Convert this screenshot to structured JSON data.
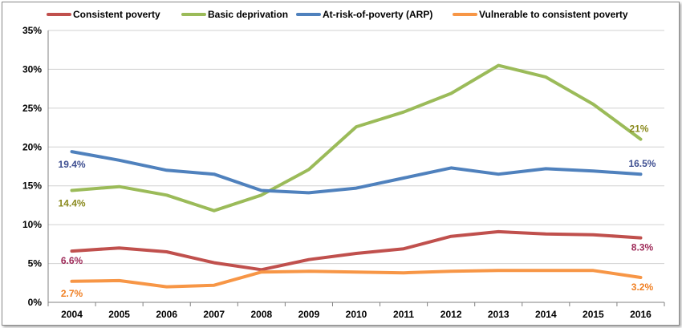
{
  "chart_data": {
    "type": "line",
    "title": "",
    "xlabel": "",
    "ylabel": "",
    "x": [
      "2004",
      "2005",
      "2006",
      "2007",
      "2008",
      "2009",
      "2010",
      "2011",
      "2012",
      "2013",
      "2014",
      "2015",
      "2016"
    ],
    "ylim": [
      0,
      35
    ],
    "yticks": [
      0,
      5,
      10,
      15,
      20,
      25,
      30,
      35
    ],
    "ytick_labels": [
      "0%",
      "5%",
      "10%",
      "15%",
      "20%",
      "25%",
      "30%",
      "35%"
    ],
    "grid": true,
    "legend_position": "top",
    "series": [
      {
        "name": "Consistent poverty",
        "color": "#c0504d",
        "values": [
          6.6,
          7.0,
          6.5,
          5.1,
          4.2,
          5.5,
          6.3,
          6.9,
          8.5,
          9.1,
          8.8,
          8.7,
          8.3
        ]
      },
      {
        "name": "Basic deprivation",
        "color": "#9bbb59",
        "values": [
          14.4,
          14.9,
          13.8,
          11.8,
          13.8,
          17.1,
          22.6,
          24.5,
          26.9,
          30.5,
          29.0,
          25.5,
          21.0
        ]
      },
      {
        "name": "At-risk-of-poverty (ARP)",
        "color": "#4f81bd",
        "values": [
          19.4,
          18.3,
          17.0,
          16.5,
          14.4,
          14.1,
          14.7,
          16.0,
          17.3,
          16.5,
          17.2,
          16.9,
          16.5
        ]
      },
      {
        "name": "Vulnerable to consistent poverty",
        "color": "#f79646",
        "values": [
          2.7,
          2.8,
          2.0,
          2.2,
          3.9,
          4.0,
          3.9,
          3.8,
          4.0,
          4.1,
          4.1,
          4.1,
          3.2
        ]
      }
    ],
    "annotations": [
      {
        "series": 1,
        "index": 0,
        "text": "14.4%",
        "color": "#8a8a1e"
      },
      {
        "series": 1,
        "index": 12,
        "text": "21%",
        "color": "#8a8a1e"
      },
      {
        "series": 2,
        "index": 0,
        "text": "19.4%",
        "color": "#3e4f91"
      },
      {
        "series": 2,
        "index": 12,
        "text": "16.5%",
        "color": "#3e4f91"
      },
      {
        "series": 0,
        "index": 0,
        "text": "6.6%",
        "color": "#9e2a58"
      },
      {
        "series": 0,
        "index": 12,
        "text": "8.3%",
        "color": "#9e2a58"
      },
      {
        "series": 3,
        "index": 0,
        "text": "2.7%",
        "color": "#f07f22"
      },
      {
        "series": 3,
        "index": 12,
        "text": "3.2%",
        "color": "#f07f22"
      }
    ]
  }
}
